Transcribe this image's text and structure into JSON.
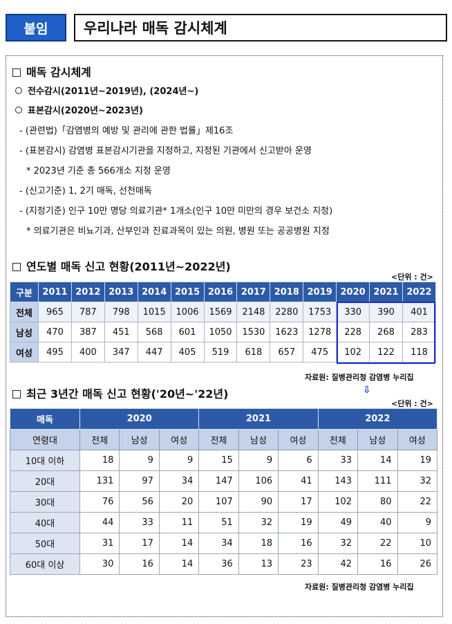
{
  "tag": "붙임",
  "title": "우리나라 매독 감시체계",
  "section1": {
    "heading": "매독 감시체계",
    "item1": "전수감시(2011년~2019년), (2024년~)",
    "item2": "표본감시(2020년~2023년)",
    "bullets": [
      "- (관련법)「감염병의 예방 및 관리에 관한 법률」제16조",
      "- (표본감시) 감염병 표본감시기관을 지정하고, 지정된 기관에서 신고받아 운영",
      "* 2023년 기준 총 566개소 지정 운영",
      "- (신고기준) 1, 2기 매독, 선천매독",
      "- (지정기준) 인구 10만 명당 의료기관* 1개소(인구 10만 미만의 경우 보건소 지정)",
      "* 의료기관은 비뇨기과, 산부인과 진료과목이 있는 의원, 병원 또는 공공병원 지정"
    ]
  },
  "section2": {
    "heading": "연도별 매독 신고 현황(2011년~2022년)",
    "unit": "<단위 : 건>",
    "columns": [
      "구분",
      "2011",
      "2012",
      "2013",
      "2014",
      "2015",
      "2016",
      "2017",
      "2018",
      "2019",
      "2020",
      "2021",
      "2022"
    ],
    "rows": [
      {
        "label": "전체",
        "values": [
          "965",
          "787",
          "798",
          "1015",
          "1006",
          "1569",
          "2148",
          "2280",
          "1753",
          "330",
          "390",
          "401"
        ]
      },
      {
        "label": "남성",
        "values": [
          "470",
          "387",
          "451",
          "568",
          "601",
          "1050",
          "1530",
          "1623",
          "1278",
          "228",
          "268",
          "283"
        ]
      },
      {
        "label": "여성",
        "values": [
          "495",
          "400",
          "347",
          "447",
          "405",
          "519",
          "618",
          "657",
          "475",
          "102",
          "122",
          "118"
        ]
      }
    ],
    "source": "자료원: 질병관리청 감염병 누리집"
  },
  "section3": {
    "heading": "최근 3년간 매독 신고 현황('20년~'22년)",
    "arrow": "⇩",
    "unit": "<단위 : 건>",
    "corner": "매독",
    "years": [
      "2020",
      "2021",
      "2022"
    ],
    "age_label": "연령대",
    "subcols": [
      "전체",
      "남성",
      "여성",
      "전체",
      "남성",
      "여성",
      "전체",
      "남성",
      "여성"
    ],
    "rows": [
      {
        "label": "10대 이하",
        "values": [
          "18",
          "9",
          "9",
          "15",
          "9",
          "6",
          "33",
          "14",
          "19"
        ]
      },
      {
        "label": "20대",
        "values": [
          "131",
          "97",
          "34",
          "147",
          "106",
          "41",
          "143",
          "111",
          "32"
        ]
      },
      {
        "label": "30대",
        "values": [
          "76",
          "56",
          "20",
          "107",
          "90",
          "17",
          "102",
          "80",
          "22"
        ]
      },
      {
        "label": "40대",
        "values": [
          "44",
          "33",
          "11",
          "51",
          "32",
          "19",
          "49",
          "40",
          "9"
        ]
      },
      {
        "label": "50대",
        "values": [
          "31",
          "17",
          "14",
          "34",
          "18",
          "16",
          "32",
          "22",
          "10"
        ]
      },
      {
        "label": "60대 이상",
        "values": [
          "30",
          "16",
          "14",
          "36",
          "13",
          "23",
          "42",
          "16",
          "26"
        ]
      }
    ],
    "source": "자료원: 질병관리청 감염병 누리집"
  }
}
